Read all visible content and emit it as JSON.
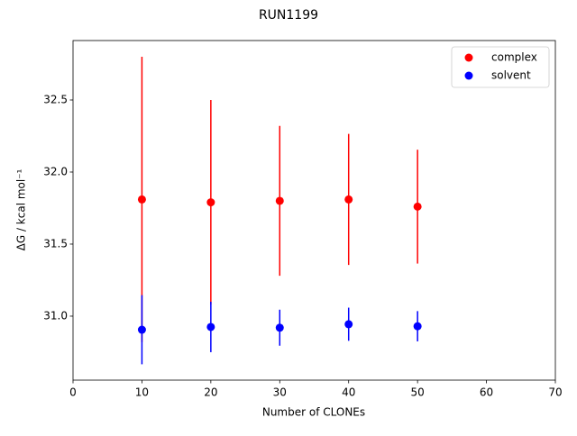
{
  "chart_data": {
    "type": "errorbar-scatter",
    "title": "RUN1199",
    "x_label": "Number of CLONEs",
    "y_label": "ΔG / kcal mol⁻¹",
    "x": [
      10,
      20,
      30,
      40,
      50
    ],
    "series": [
      {
        "name": "complex",
        "color": "#ff0000",
        "values": [
          31.81,
          31.79,
          31.8,
          31.81,
          31.76
        ],
        "errors": [
          0.99,
          0.71,
          0.52,
          0.455,
          0.395
        ]
      },
      {
        "name": "solvent",
        "color": "#0000ff",
        "values": [
          30.906,
          30.925,
          30.92,
          30.944,
          30.93
        ],
        "errors": [
          0.24,
          0.175,
          0.125,
          0.115,
          0.105
        ]
      }
    ],
    "xlim": [
      0,
      70
    ],
    "xticks": [
      0,
      10,
      20,
      30,
      40,
      50,
      60,
      70
    ],
    "ylim": [
      30.556,
      32.9125
    ],
    "yticks": [
      {
        "value": 31,
        "label": "31.0"
      },
      31.5,
      {
        "value": 32,
        "label": "32.0"
      },
      32.5
    ],
    "grid": false,
    "legend": "upper right"
  }
}
